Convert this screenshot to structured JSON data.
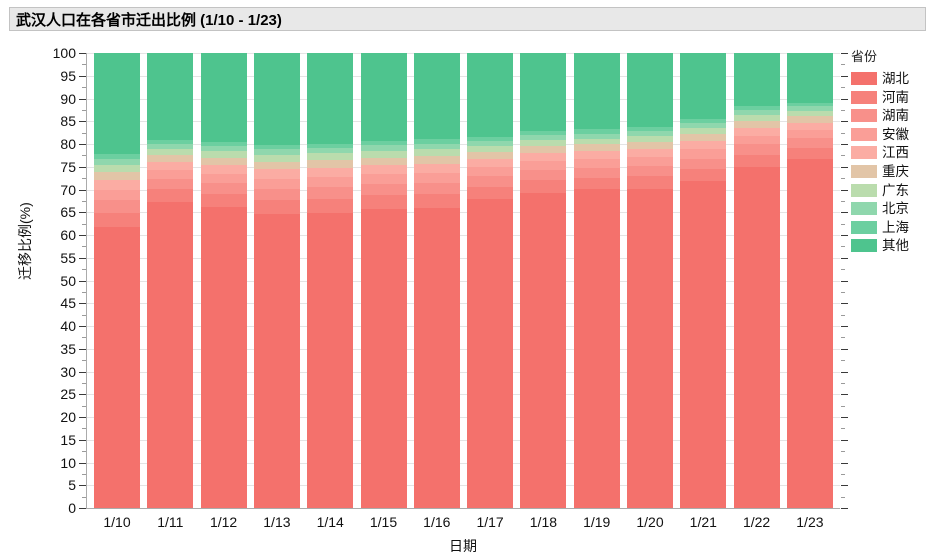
{
  "title": "武汉人口在各省市迁出比例 (1/10 - 1/23)",
  "chart_data": {
    "type": "bar",
    "stacked": true,
    "percent_stacked": true,
    "title": "武汉人口在各省市迁出比例 (1/10 - 1/23)",
    "xlabel": "日期",
    "ylabel": "迁移比例(%)",
    "ylim": [
      0,
      100
    ],
    "ytick_step": 5,
    "ytick_minor_step": 2.5,
    "grid": true,
    "legend_title": "省份",
    "legend_position": "right",
    "categories": [
      "1/10",
      "1/11",
      "1/12",
      "1/13",
      "1/14",
      "1/15",
      "1/16",
      "1/17",
      "1/18",
      "1/19",
      "1/20",
      "1/21",
      "1/22",
      "1/23"
    ],
    "series": [
      {
        "name": "湖北",
        "color": "#f4716c",
        "values": [
          61.7,
          67.3,
          66.1,
          64.5,
          64.9,
          65.8,
          65.9,
          67.8,
          69.3,
          70.0,
          70.2,
          71.8,
          74.9,
          76.7
        ]
      },
      {
        "name": "河南",
        "color": "#f6817b",
        "values": [
          3.2,
          2.7,
          2.9,
          3.1,
          3.1,
          3.0,
          3.0,
          2.8,
          2.7,
          2.6,
          2.7,
          2.7,
          2.7,
          2.5
        ]
      },
      {
        "name": "湖南",
        "color": "#f8908a",
        "values": [
          2.7,
          2.3,
          2.4,
          2.6,
          2.6,
          2.5,
          2.6,
          2.3,
          2.3,
          2.2,
          2.3,
          2.3,
          2.3,
          2.1
        ]
      },
      {
        "name": "安徽",
        "color": "#fa9e97",
        "values": [
          2.3,
          1.9,
          2.1,
          2.2,
          2.2,
          2.2,
          2.2,
          2.0,
          1.9,
          1.9,
          2.0,
          2.0,
          1.9,
          1.8
        ]
      },
      {
        "name": "江西",
        "color": "#fbaca3",
        "values": [
          2.1,
          1.8,
          1.9,
          2.0,
          2.0,
          1.9,
          2.0,
          1.8,
          1.8,
          1.7,
          1.8,
          1.8,
          1.8,
          1.6
        ]
      },
      {
        "name": "重庆",
        "color": "#e2c5a7",
        "values": [
          1.8,
          1.5,
          1.6,
          1.7,
          1.7,
          1.6,
          1.7,
          1.5,
          1.5,
          1.5,
          1.5,
          1.5,
          1.5,
          1.4
        ]
      },
      {
        "name": "广东",
        "color": "#badcad",
        "values": [
          1.6,
          1.3,
          1.4,
          1.5,
          1.5,
          1.5,
          1.5,
          1.4,
          1.3,
          1.3,
          1.3,
          1.4,
          1.3,
          1.2
        ]
      },
      {
        "name": "北京",
        "color": "#8fd7ad",
        "values": [
          1.3,
          1.1,
          1.1,
          1.2,
          1.2,
          1.2,
          1.2,
          1.1,
          1.1,
          1.1,
          1.1,
          1.1,
          1.1,
          1.0
        ]
      },
      {
        "name": "上海",
        "color": "#6ccfa0",
        "values": [
          1.0,
          0.9,
          0.9,
          1.0,
          0.9,
          1.0,
          0.9,
          0.9,
          0.9,
          0.9,
          0.9,
          0.9,
          0.9,
          0.8
        ]
      },
      {
        "name": "其他",
        "color": "#4ec48e",
        "values": [
          22.3,
          19.2,
          19.6,
          20.2,
          19.9,
          19.3,
          19.0,
          18.4,
          17.2,
          16.8,
          16.2,
          14.5,
          11.6,
          10.9
        ]
      }
    ]
  }
}
